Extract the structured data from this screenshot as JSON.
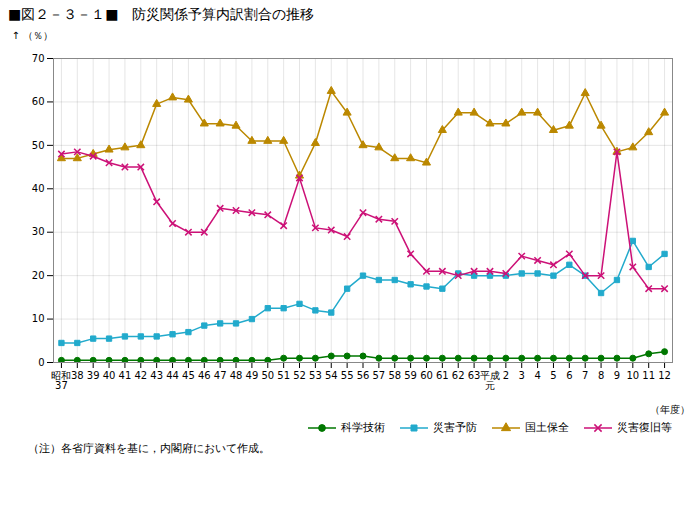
{
  "chart_data": {
    "type": "line",
    "title": "■図２－３－１■　防災関係予算内訳割合の推移",
    "ylabel": "（％）",
    "xlabel": "（年度）",
    "note": "（注）各省庁資料を基に，内閣府において作成。",
    "categories": [
      "昭和\n37",
      "38",
      "39",
      "40",
      "41",
      "42",
      "43",
      "44",
      "45",
      "46",
      "47",
      "48",
      "49",
      "50",
      "51",
      "52",
      "53",
      "54",
      "55",
      "56",
      "57",
      "58",
      "59",
      "60",
      "61",
      "62",
      "63",
      "平成\n元",
      "2",
      "3",
      "4",
      "5",
      "6",
      "7",
      "8",
      "9",
      "10",
      "11",
      "12"
    ],
    "series": [
      {
        "name": "科学技術",
        "color": "#007700",
        "marker": "circle",
        "values": [
          0.5,
          0.5,
          0.5,
          0.5,
          0.5,
          0.5,
          0.5,
          0.5,
          0.5,
          0.5,
          0.5,
          0.5,
          0.5,
          0.5,
          1.0,
          1.0,
          1.0,
          1.5,
          1.5,
          1.5,
          1.0,
          1.0,
          1.0,
          1.0,
          1.0,
          1.0,
          1.0,
          1.0,
          1.0,
          1.0,
          1.0,
          1.0,
          1.0,
          1.0,
          1.0,
          1.0,
          1.0,
          2.0,
          2.5
        ]
      },
      {
        "name": "災害予防",
        "color": "#22AACC",
        "marker": "square",
        "values": [
          4.5,
          4.5,
          5.5,
          5.5,
          6.0,
          6.0,
          6.0,
          6.5,
          7.0,
          8.5,
          9.0,
          9.0,
          10.0,
          12.5,
          12.5,
          13.5,
          12.0,
          11.5,
          17.0,
          20.0,
          19.0,
          19.0,
          18.0,
          17.5,
          17.0,
          20.5,
          20.0,
          20.0,
          20.0,
          20.5,
          20.5,
          20.0,
          22.5,
          20.0,
          16.0,
          19.0,
          28.0,
          22.0,
          25.0
        ]
      },
      {
        "name": "国土保全",
        "color": "#BB8800",
        "marker": "triangle",
        "values": [
          47.0,
          47.0,
          48.0,
          49.0,
          49.5,
          50.0,
          59.5,
          61.0,
          60.5,
          55.0,
          55.0,
          54.5,
          51.0,
          51.0,
          51.0,
          43.0,
          50.5,
          62.5,
          57.5,
          50.0,
          49.5,
          47.0,
          47.0,
          46.0,
          53.5,
          57.5,
          57.5,
          55.0,
          55.0,
          57.5,
          57.5,
          53.5,
          54.5,
          62.0,
          54.5,
          48.5,
          49.5,
          53.0,
          57.5
        ]
      },
      {
        "name": "災害復旧等",
        "color": "#CC1177",
        "marker": "x",
        "values": [
          48.0,
          48.5,
          47.5,
          46.0,
          45.0,
          45.0,
          37.0,
          32.0,
          30.0,
          30.0,
          35.5,
          35.0,
          34.5,
          34.0,
          31.5,
          42.5,
          31.0,
          30.5,
          29.0,
          34.5,
          33.0,
          32.5,
          25.0,
          21.0,
          21.0,
          20.0,
          21.0,
          21.0,
          20.5,
          24.5,
          23.5,
          22.5,
          25.0,
          20.0,
          20.0,
          48.5,
          22.0,
          17.0,
          17.0
        ]
      }
    ],
    "ylim": [
      0,
      70
    ],
    "yticks": [
      0,
      10,
      20,
      30,
      40,
      50,
      60,
      70
    ],
    "grid": true,
    "legend": "lower right"
  }
}
